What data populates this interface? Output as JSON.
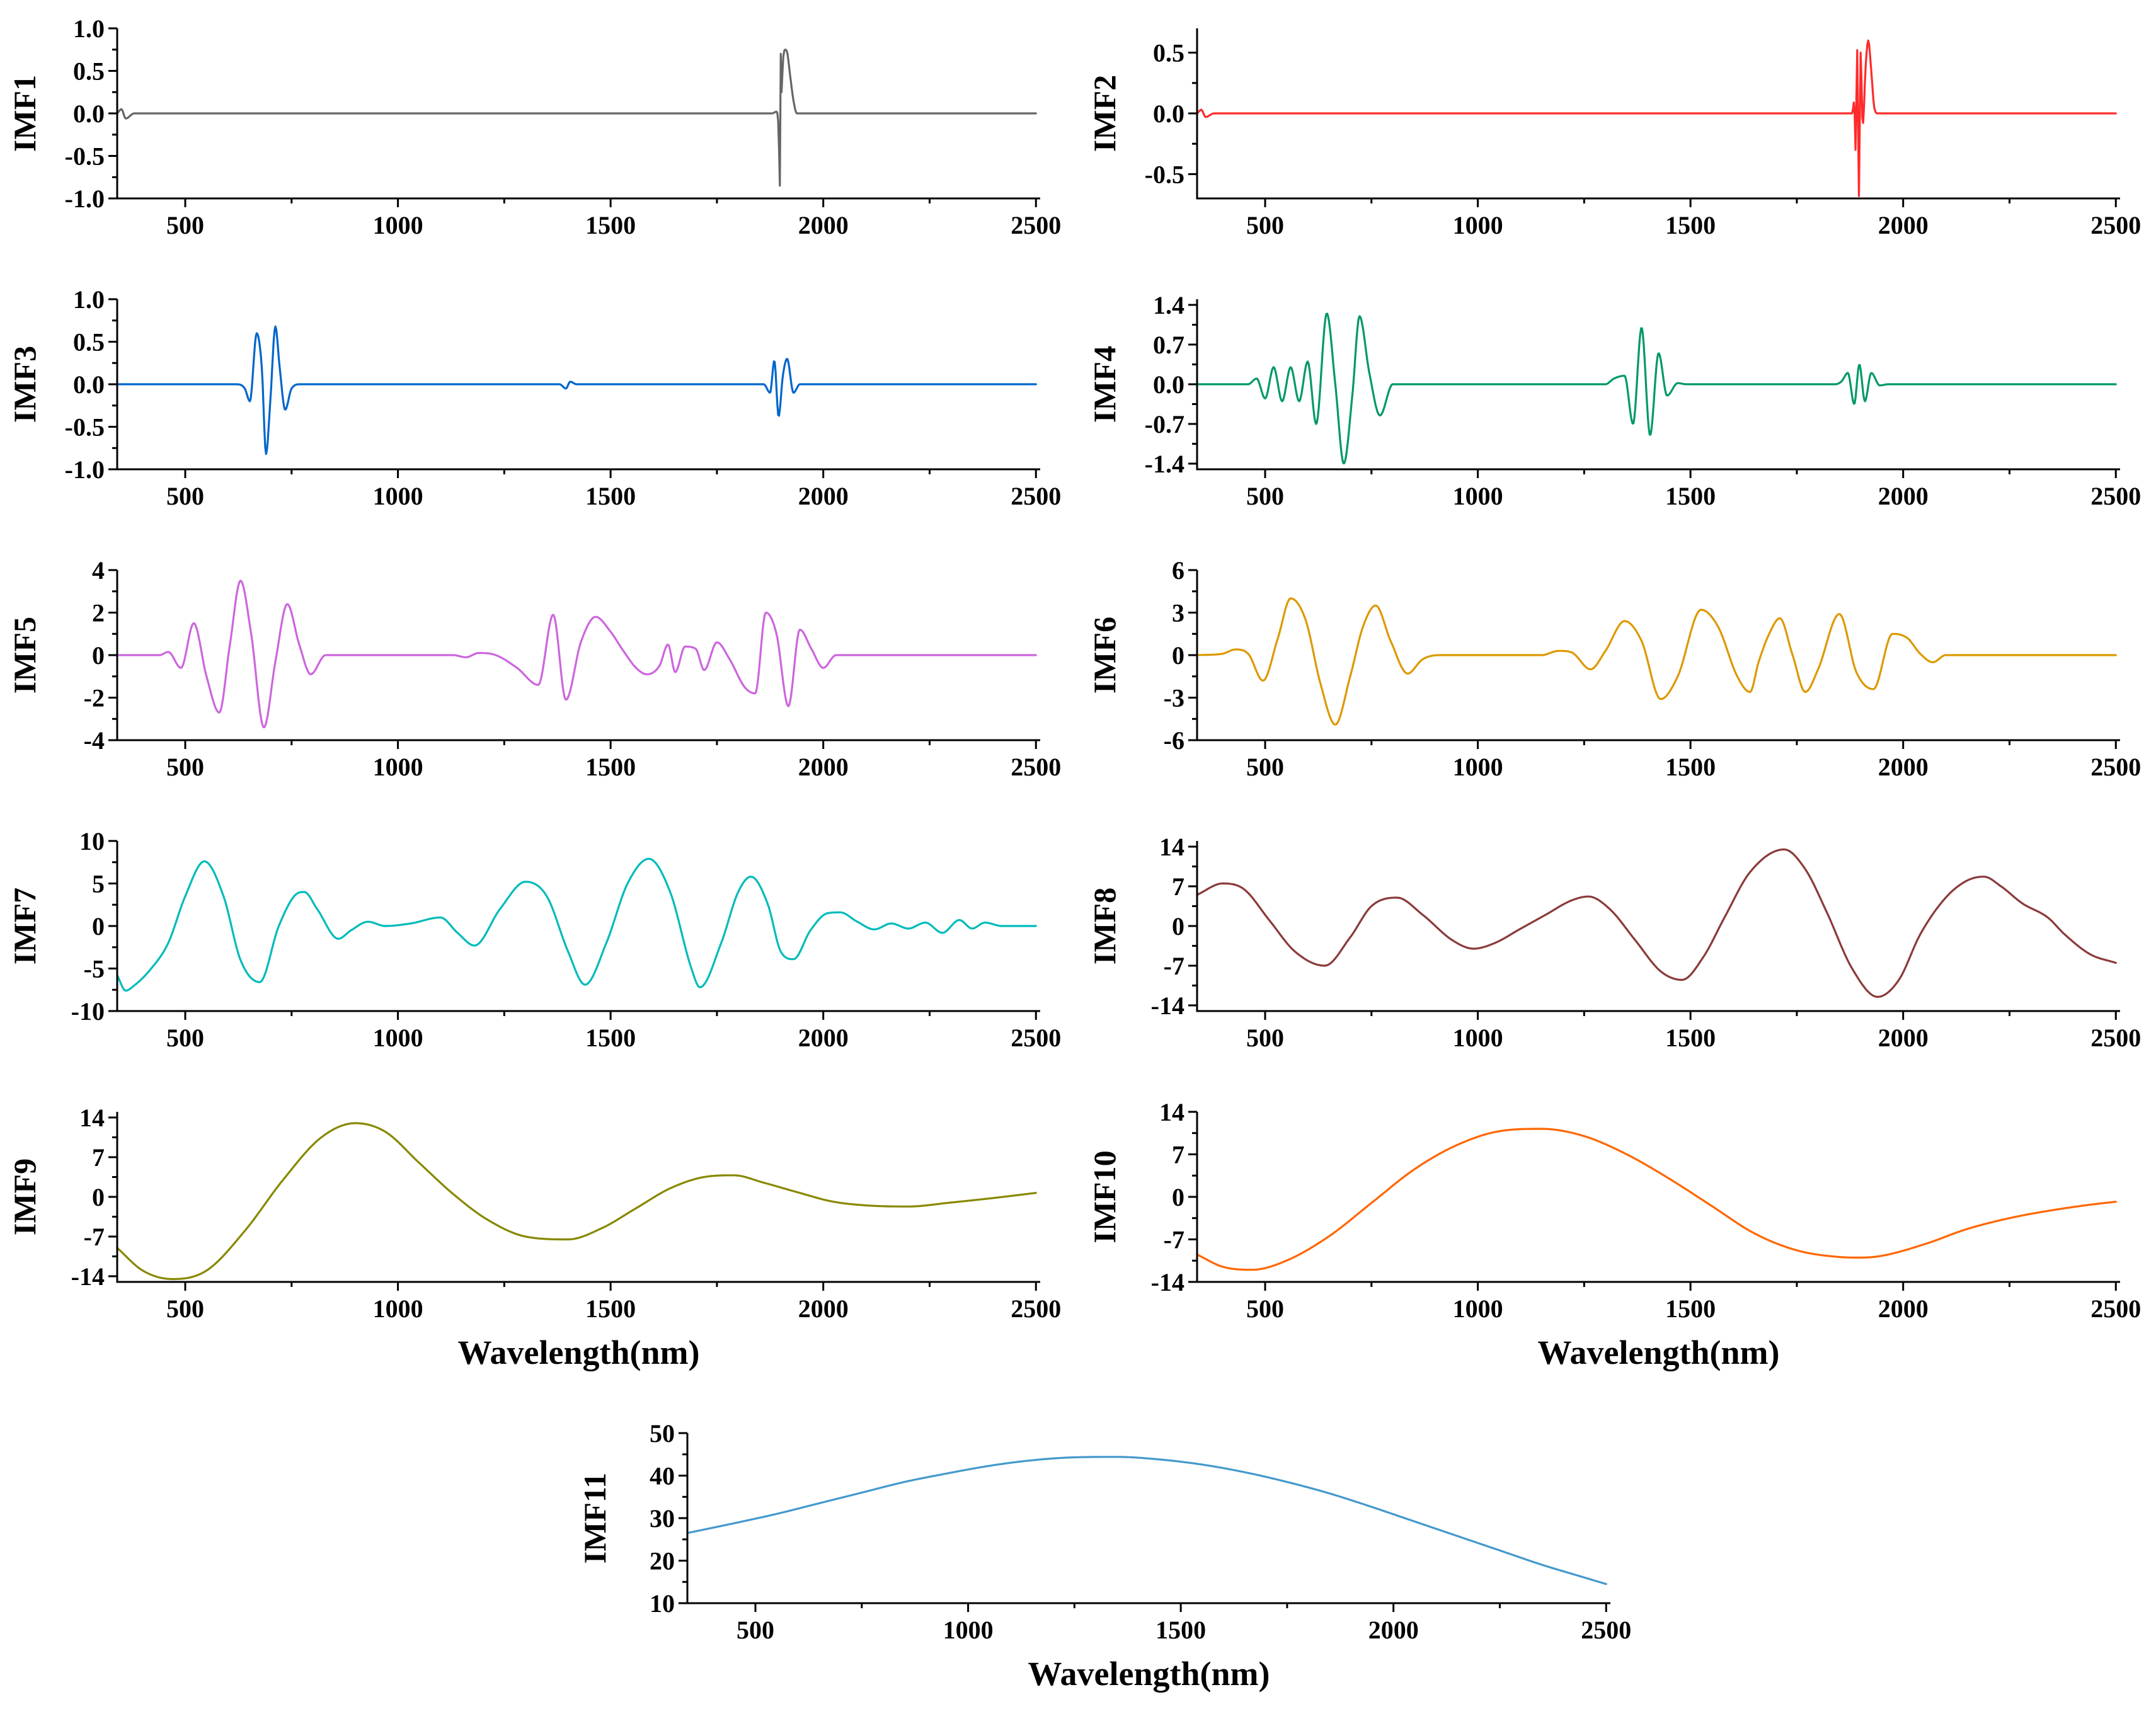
{
  "chart_data": [
    {
      "id": "imf1",
      "type": "line",
      "ylabel": "IMF1",
      "xlabel": "",
      "color": "#666666",
      "xlim": [
        340,
        2510
      ],
      "ylim": [
        -1.0,
        1.0
      ],
      "xticks": [
        500,
        1000,
        1500,
        2000,
        2500
      ],
      "yticks": [
        -1.0,
        -0.5,
        0.0,
        0.5,
        1.0
      ],
      "ytick_labels": [
        "-1.0",
        "-0.5",
        "0.0",
        "0.5",
        "1.0"
      ],
      "x": [
        340,
        350,
        360,
        380,
        700,
        1400,
        1880,
        1890,
        1895,
        1898,
        1900,
        1902,
        1905,
        1910,
        1915,
        1922,
        1930,
        1938,
        2500
      ],
      "values": [
        0,
        0.05,
        -0.06,
        0,
        0,
        0,
        0,
        0.02,
        -0.2,
        -0.85,
        0.7,
        0.25,
        0.6,
        0.75,
        0.72,
        0.45,
        0.15,
        0,
        0
      ]
    },
    {
      "id": "imf2",
      "type": "line",
      "ylabel": "IMF2",
      "xlabel": "",
      "color": "#ff2a2a",
      "xlim": [
        340,
        2510
      ],
      "ylim": [
        -0.7,
        0.7
      ],
      "xticks": [
        500,
        1000,
        1500,
        2000,
        2500
      ],
      "yticks": [
        -0.5,
        0.0,
        0.5
      ],
      "ytick_labels": [
        "-0.5",
        "0.0",
        "0.5"
      ],
      "x": [
        340,
        350,
        360,
        380,
        1880,
        1885,
        1888,
        1892,
        1896,
        1900,
        1905,
        1912,
        1918,
        1925,
        1932,
        1940,
        2500
      ],
      "values": [
        0,
        0.03,
        -0.03,
        0,
        0,
        0.1,
        -0.3,
        0.52,
        -0.68,
        0.5,
        -0.1,
        0.4,
        0.6,
        0.35,
        0.05,
        0,
        0
      ]
    },
    {
      "id": "imf3",
      "type": "line",
      "ylabel": "IMF3",
      "xlabel": "",
      "color": "#0066cc",
      "xlim": [
        340,
        2510
      ],
      "ylim": [
        -1.0,
        1.0
      ],
      "xticks": [
        500,
        1000,
        1500,
        2000,
        2500
      ],
      "yticks": [
        -1.0,
        -0.5,
        0.0,
        0.5,
        1.0
      ],
      "ytick_labels": [
        "-1.0",
        "-0.5",
        "0.0",
        "0.5",
        "1.0"
      ],
      "x": [
        340,
        620,
        640,
        652,
        668,
        680,
        690,
        700,
        712,
        722,
        735,
        750,
        770,
        1380,
        1395,
        1405,
        1420,
        1860,
        1875,
        1885,
        1895,
        1905,
        1915,
        1930,
        1945,
        2500
      ],
      "values": [
        0,
        0,
        -0.05,
        -0.2,
        0.6,
        0.2,
        -0.82,
        -0.2,
        0.68,
        0.2,
        -0.3,
        -0.05,
        0,
        0,
        -0.05,
        0.03,
        0,
        0,
        -0.1,
        0.28,
        -0.38,
        0.1,
        0.3,
        -0.1,
        0,
        0
      ]
    },
    {
      "id": "imf4",
      "type": "line",
      "ylabel": "IMF4",
      "xlabel": "",
      "color": "#009966",
      "xlim": [
        340,
        2510
      ],
      "ylim": [
        -1.5,
        1.5
      ],
      "xticks": [
        500,
        1000,
        1500,
        2000,
        2500
      ],
      "yticks": [
        -1.4,
        -0.7,
        0.0,
        0.7,
        1.4
      ],
      "ytick_labels": [
        "-1.4",
        "-0.7",
        "0.0",
        "0.7",
        "1.4"
      ],
      "x": [
        340,
        460,
        480,
        500,
        520,
        540,
        560,
        580,
        600,
        620,
        645,
        665,
        685,
        705,
        722,
        745,
        770,
        800,
        1300,
        1320,
        1345,
        1365,
        1385,
        1405,
        1425,
        1445,
        1470,
        1490,
        1840,
        1855,
        1870,
        1885,
        1897,
        1910,
        1925,
        1945,
        1965,
        2500
      ],
      "values": [
        0,
        0,
        0.1,
        -0.25,
        0.3,
        -0.3,
        0.3,
        -0.3,
        0.4,
        -0.7,
        1.25,
        0,
        -1.4,
        -0.2,
        1.2,
        0.2,
        -0.55,
        0,
        0,
        0.1,
        0.15,
        -0.7,
        1.0,
        -0.9,
        0.55,
        -0.2,
        0.02,
        0,
        0,
        0.05,
        0.2,
        -0.35,
        0.35,
        -0.3,
        0.2,
        -0.02,
        0,
        0
      ]
    },
    {
      "id": "imf5",
      "type": "line",
      "ylabel": "IMF5",
      "xlabel": "",
      "color": "#cc66dd",
      "xlim": [
        340,
        2510
      ],
      "ylim": [
        -4,
        4
      ],
      "xticks": [
        500,
        1000,
        1500,
        2000,
        2500
      ],
      "yticks": [
        -4,
        -2,
        0,
        2,
        4
      ],
      "ytick_labels": [
        "-4",
        "-2",
        "0",
        "2",
        "4"
      ],
      "x": [
        340,
        440,
        460,
        490,
        520,
        550,
        580,
        605,
        630,
        655,
        685,
        712,
        740,
        768,
        795,
        830,
        1130,
        1160,
        1190,
        1230,
        1280,
        1330,
        1365,
        1395,
        1430,
        1465,
        1500,
        1530,
        1560,
        1585,
        1615,
        1635,
        1652,
        1675,
        1700,
        1720,
        1750,
        1780,
        1815,
        1840,
        1865,
        1890,
        1918,
        1945,
        1972,
        2000,
        2030,
        2500
      ],
      "values": [
        0,
        0,
        0.15,
        -0.6,
        1.5,
        -1.0,
        -2.7,
        0.5,
        3.5,
        1.0,
        -3.4,
        -0.3,
        2.4,
        0.5,
        -0.9,
        0,
        0,
        -0.1,
        0.1,
        0,
        -0.6,
        -1.4,
        1.9,
        -2.1,
        0.6,
        1.8,
        1.1,
        0.2,
        -0.6,
        -0.9,
        -0.5,
        0.5,
        -0.8,
        0.4,
        0.3,
        -0.7,
        0.6,
        -0.2,
        -1.5,
        -1.8,
        2.0,
        1.0,
        -2.4,
        1.2,
        0.3,
        -0.6,
        0,
        0
      ]
    },
    {
      "id": "imf6",
      "type": "line",
      "ylabel": "IMF6",
      "xlabel": "",
      "color": "#dd9900",
      "xlim": [
        340,
        2510
      ],
      "ylim": [
        -6,
        6
      ],
      "xticks": [
        500,
        1000,
        1500,
        2000,
        2500
      ],
      "yticks": [
        -6,
        -3,
        0,
        3,
        6
      ],
      "ytick_labels": [
        "-6",
        "-3",
        "0",
        "3",
        "6"
      ],
      "x": [
        340,
        400,
        430,
        460,
        495,
        530,
        560,
        595,
        630,
        665,
        700,
        730,
        760,
        795,
        835,
        870,
        910,
        1150,
        1190,
        1220,
        1265,
        1300,
        1345,
        1385,
        1430,
        1470,
        1525,
        1565,
        1610,
        1640,
        1660,
        1685,
        1710,
        1740,
        1770,
        1800,
        1850,
        1890,
        1930,
        1975,
        2010,
        2040,
        2070,
        2100,
        2500
      ],
      "values": [
        0,
        0.1,
        0.4,
        0.1,
        -1.8,
        1.2,
        4.0,
        2.5,
        -2.0,
        -4.9,
        -1.5,
        2.0,
        3.5,
        1.0,
        -1.3,
        -0.3,
        0,
        0,
        0.3,
        0.2,
        -1.0,
        0.3,
        2.4,
        1.0,
        -3.1,
        -1.5,
        3.2,
        2.0,
        -1.5,
        -2.6,
        -0.5,
        1.5,
        2.6,
        0,
        -2.6,
        -1.0,
        2.9,
        -1.2,
        -2.4,
        1.5,
        1.2,
        0.1,
        -0.5,
        0,
        0
      ]
    },
    {
      "id": "imf7",
      "type": "line",
      "ylabel": "IMF7",
      "xlabel": "",
      "color": "#00bbbb",
      "xlim": [
        340,
        2510
      ],
      "ylim": [
        -10,
        10
      ],
      "xticks": [
        500,
        1000,
        1500,
        2000,
        2500
      ],
      "yticks": [
        -10,
        -5,
        0,
        5,
        10
      ],
      "ytick_labels": [
        "-10",
        "-5",
        "0",
        "5",
        "10"
      ],
      "x": [
        340,
        360,
        380,
        420,
        460,
        500,
        545,
        590,
        630,
        675,
        720,
        760,
        780,
        810,
        860,
        890,
        930,
        970,
        1030,
        1100,
        1140,
        1180,
        1240,
        1300,
        1350,
        1400,
        1440,
        1490,
        1540,
        1590,
        1640,
        1690,
        1710,
        1760,
        1800,
        1830,
        1870,
        1900,
        1930,
        1970,
        2010,
        2040,
        2080,
        2120,
        2160,
        2200,
        2240,
        2280,
        2320,
        2350,
        2380,
        2420,
        2500
      ],
      "values": [
        -5.8,
        -7.6,
        -7.0,
        -5.0,
        -2.0,
        3.5,
        7.6,
        3.5,
        -4.0,
        -6.6,
        0,
        3.7,
        4.0,
        2.0,
        -1.5,
        -0.5,
        0.5,
        0,
        0.3,
        1.0,
        -0.8,
        -2.3,
        2.0,
        5.2,
        3.5,
        -3.0,
        -6.9,
        -2.0,
        5.0,
        7.9,
        4.0,
        -5.0,
        -7.2,
        -2.0,
        4.0,
        5.8,
        2.5,
        -3.0,
        -3.9,
        -0.5,
        1.5,
        1.6,
        0.5,
        -0.4,
        0.3,
        -0.3,
        0.4,
        -0.8,
        0.7,
        -0.3,
        0.4,
        0,
        0
      ]
    },
    {
      "id": "imf8",
      "type": "line",
      "ylabel": "IMF8",
      "xlabel": "",
      "color": "#8b3a3a",
      "xlim": [
        340,
        2510
      ],
      "ylim": [
        -15,
        15
      ],
      "xticks": [
        500,
        1000,
        1500,
        2000,
        2500
      ],
      "yticks": [
        -14,
        -7,
        0,
        7,
        14
      ],
      "ytick_labels": [
        "-14",
        "-7",
        "0",
        "7",
        "14"
      ],
      "x": [
        340,
        400,
        450,
        510,
        570,
        640,
        700,
        750,
        810,
        870,
        940,
        990,
        1040,
        1100,
        1160,
        1220,
        1260,
        1310,
        1370,
        1430,
        1480,
        1530,
        1580,
        1640,
        1720,
        1770,
        1820,
        1880,
        1940,
        1990,
        2040,
        2100,
        2150,
        2190,
        2230,
        2280,
        2340,
        2380,
        2440,
        2500
      ],
      "values": [
        5.5,
        7.5,
        6.5,
        1.0,
        -4.5,
        -7.0,
        -2.0,
        3.5,
        5.0,
        2.0,
        -2.5,
        -4.0,
        -3.0,
        -0.5,
        2.0,
        4.5,
        5.2,
        3.0,
        -2.5,
        -8.0,
        -9.5,
        -5.5,
        1.5,
        9.5,
        13.5,
        10.0,
        2.5,
        -7.5,
        -12.5,
        -9.5,
        -1.5,
        5.0,
        8.0,
        8.7,
        7.0,
        4.0,
        1.5,
        -1.5,
        -5.0,
        -6.5
      ]
    },
    {
      "id": "imf9",
      "type": "line",
      "ylabel": "IMF9",
      "xlabel": "Wavelength(nm)",
      "color": "#888800",
      "xlim": [
        340,
        2510
      ],
      "ylim": [
        -15,
        15
      ],
      "xticks": [
        500,
        1000,
        1500,
        2000,
        2500
      ],
      "yticks": [
        -14,
        -7,
        0,
        7,
        14
      ],
      "ytick_labels": [
        "-14",
        "-7",
        "0",
        "7",
        "14"
      ],
      "x": [
        340,
        400,
        470,
        550,
        640,
        730,
        820,
        900,
        970,
        1050,
        1130,
        1210,
        1300,
        1400,
        1480,
        1560,
        1640,
        1720,
        1790,
        1860,
        1940,
        2020,
        2100,
        2200,
        2300,
        2400,
        2500
      ],
      "values": [
        -9.0,
        -13.0,
        -14.5,
        -13.0,
        -6.0,
        3.0,
        10.5,
        13.0,
        11.5,
        6.0,
        0.5,
        -4.0,
        -7.0,
        -7.5,
        -5.5,
        -2.0,
        1.5,
        3.5,
        3.8,
        2.5,
        0.8,
        -0.8,
        -1.5,
        -1.7,
        -1.0,
        -0.2,
        0.7
      ]
    },
    {
      "id": "imf10",
      "type": "line",
      "ylabel": "IMF10",
      "xlabel": "Wavelength(nm)",
      "color": "#ff6600",
      "xlim": [
        340,
        2510
      ],
      "ylim": [
        -14,
        14
      ],
      "xticks": [
        500,
        1000,
        1500,
        2000,
        2500
      ],
      "yticks": [
        -14,
        -7,
        0,
        7,
        14
      ],
      "ytick_labels": [
        "-14",
        "-7",
        "0",
        "7",
        "14"
      ],
      "x": [
        340,
        400,
        470,
        550,
        650,
        750,
        850,
        950,
        1050,
        1150,
        1250,
        1350,
        1450,
        1550,
        1650,
        1750,
        1850,
        1900,
        1950,
        2050,
        2150,
        2250,
        2350,
        2450,
        2500
      ],
      "values": [
        -9.5,
        -11.5,
        -12.0,
        -10.5,
        -6.5,
        -1.0,
        4.5,
        8.5,
        10.8,
        11.2,
        10.0,
        7.0,
        3.0,
        -1.5,
        -6.0,
        -8.8,
        -9.9,
        -10.0,
        -9.7,
        -7.8,
        -5.3,
        -3.5,
        -2.2,
        -1.2,
        -0.8
      ]
    },
    {
      "id": "imf11",
      "type": "line",
      "ylabel": "IMF11",
      "xlabel": "Wavelength(nm)",
      "color": "#4499cc",
      "xlim": [
        340,
        2510
      ],
      "ylim": [
        10,
        50
      ],
      "xticks": [
        500,
        1000,
        1500,
        2000,
        2500
      ],
      "yticks": [
        10,
        20,
        30,
        40,
        50
      ],
      "ytick_labels": [
        "10",
        "20",
        "30",
        "40",
        "50"
      ],
      "x": [
        340,
        450,
        550,
        650,
        750,
        850,
        950,
        1050,
        1150,
        1250,
        1350,
        1450,
        1550,
        1650,
        1750,
        1850,
        1950,
        2050,
        2150,
        2250,
        2350,
        2450,
        2500
      ],
      "values": [
        26.5,
        28.8,
        31.0,
        33.5,
        36.0,
        38.5,
        40.5,
        42.3,
        43.6,
        44.3,
        44.4,
        43.8,
        42.6,
        40.8,
        38.5,
        35.8,
        32.6,
        29.2,
        25.8,
        22.4,
        19.0,
        16.0,
        14.5
      ]
    }
  ]
}
